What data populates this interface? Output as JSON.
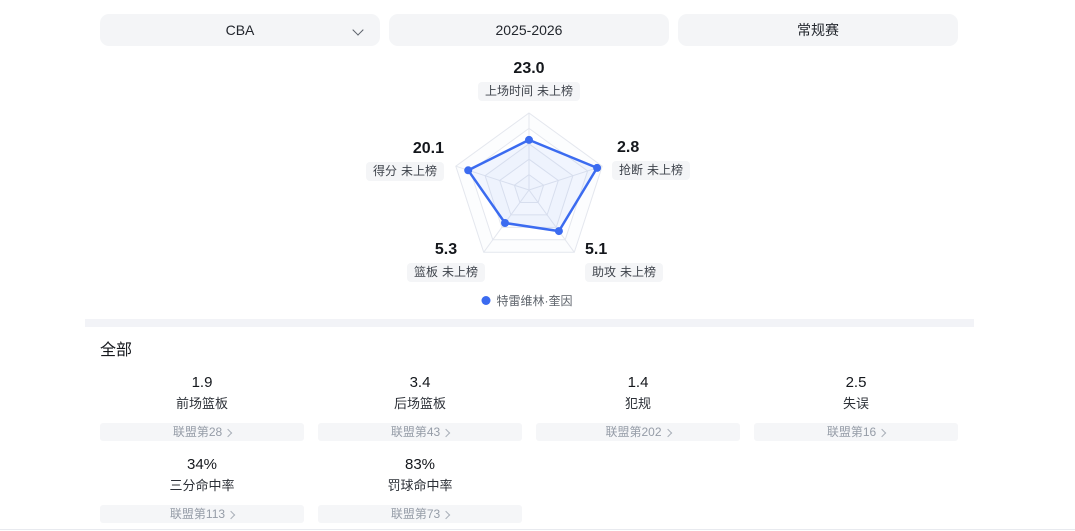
{
  "filters": [
    {
      "label": "CBA",
      "has_dropdown": true
    },
    {
      "label": "2025-2026",
      "has_dropdown": false
    },
    {
      "label": "常规赛",
      "has_dropdown": false
    }
  ],
  "chart_data": {
    "type": "radar",
    "levels": 5,
    "legend": {
      "name": "特雷维林·奎因",
      "position": "bottom"
    },
    "series": [
      {
        "name": "特雷维林·奎因",
        "color": "#3b6bf0",
        "values": [
          23.0,
          2.8,
          5.1,
          5.3,
          20.1
        ]
      }
    ],
    "axes": [
      {
        "label": "上场时间",
        "rank": "未上榜",
        "display": "23.0",
        "value": 23.0,
        "ratio": 0.65
      },
      {
        "label": "抢断",
        "rank": "未上榜",
        "display": "2.8",
        "value": 2.8,
        "ratio": 0.93
      },
      {
        "label": "助攻",
        "rank": "未上榜",
        "display": "5.1",
        "value": 5.1,
        "ratio": 0.66
      },
      {
        "label": "篮板",
        "rank": "未上榜",
        "display": "5.3",
        "value": 5.3,
        "ratio": 0.53
      },
      {
        "label": "得分",
        "rank": "未上榜",
        "display": "20.1",
        "value": 20.1,
        "ratio": 0.83
      }
    ]
  },
  "section": {
    "title": "全部"
  },
  "stats": [
    {
      "value": "1.9",
      "label": "前场篮板",
      "rank": "联盟第28"
    },
    {
      "value": "3.4",
      "label": "后场篮板",
      "rank": "联盟第43"
    },
    {
      "value": "1.4",
      "label": "犯规",
      "rank": "联盟第202"
    },
    {
      "value": "2.5",
      "label": "失误",
      "rank": "联盟第16"
    },
    {
      "value": "34%",
      "label": "三分命中率",
      "rank": "联盟第113"
    },
    {
      "value": "83%",
      "label": "罚球命中率",
      "rank": "联盟第73"
    }
  ],
  "icons": {
    "dropdown_chevron": "chevron-down",
    "rank_chevron": "chevron-right",
    "legend_marker": "dot"
  },
  "colors": {
    "accent": "#3b6bf0",
    "pill_bg": "#f4f5f7",
    "divider": "#f2f3f7",
    "rank_text": "#959ca7"
  }
}
